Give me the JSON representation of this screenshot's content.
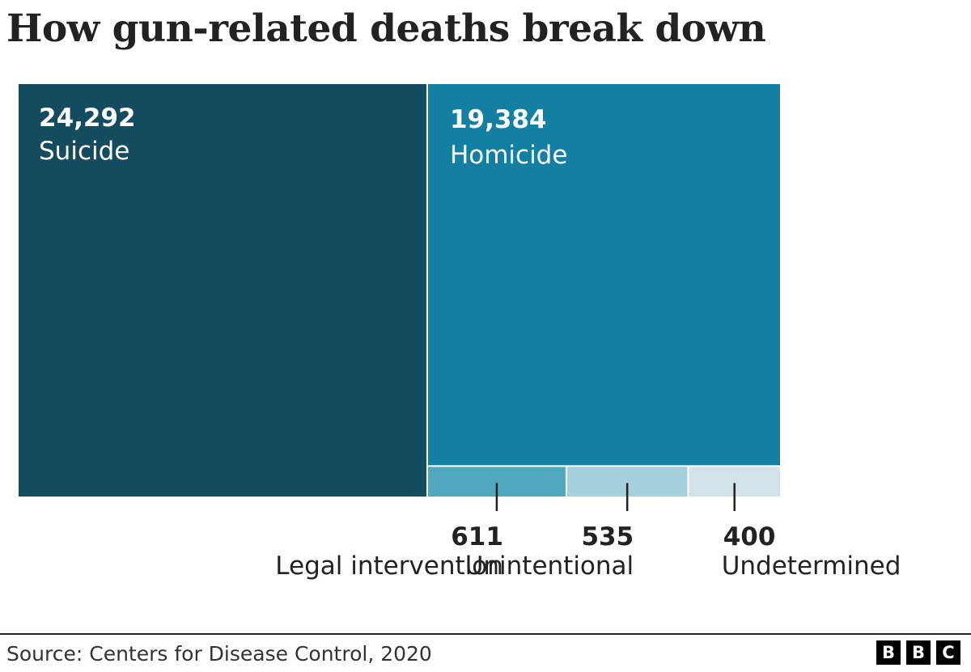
{
  "title": "How gun-related deaths break down",
  "source": "Source: Centers for Disease Control, 2020",
  "logo": [
    "B",
    "B",
    "C"
  ],
  "chart_data": {
    "type": "treemap",
    "title": "How gun-related deaths break down",
    "items": [
      {
        "label": "Suicide",
        "value": 24292,
        "value_text": "24,292",
        "color": "#134b5f"
      },
      {
        "label": "Homicide",
        "value": 19384,
        "value_text": "19,384",
        "color": "#1380a1"
      },
      {
        "label": "Legal intervention",
        "value": 611,
        "value_text": "611",
        "color": "#4fa8bd"
      },
      {
        "label": "Unintentional",
        "value": 535,
        "value_text": "535",
        "color": "#a5d0dd"
      },
      {
        "label": "Undetermined",
        "value": 400,
        "value_text": "400",
        "color": "#d1e3e8"
      }
    ]
  }
}
